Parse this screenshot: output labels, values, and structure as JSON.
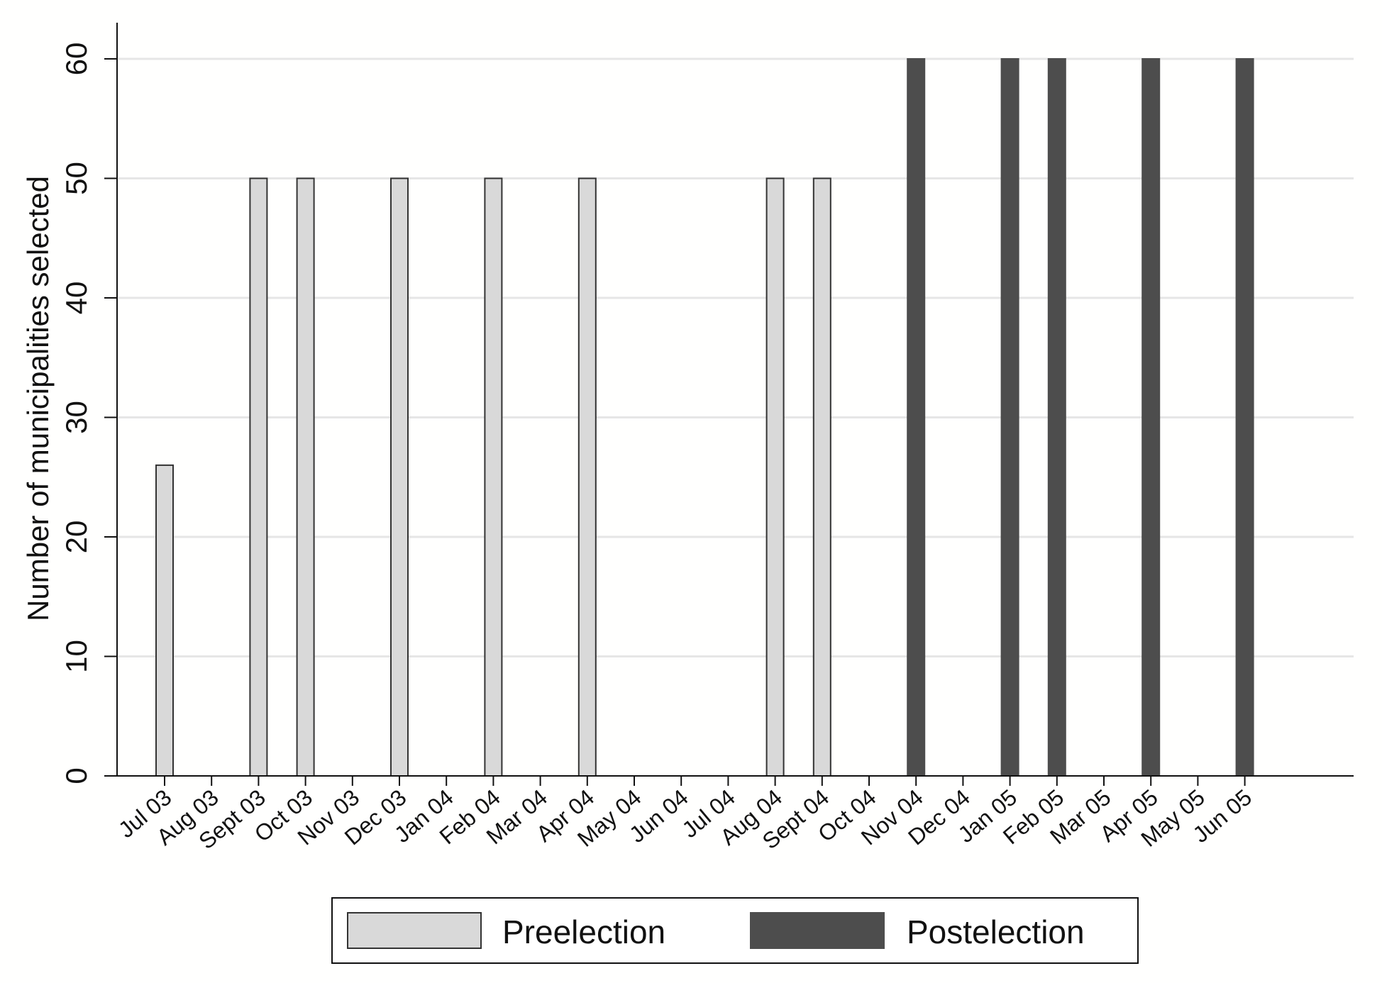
{
  "chart_data": {
    "type": "bar",
    "title": "",
    "xlabel": "",
    "ylabel": "Number of municipalities selected",
    "ylim": [
      0,
      60
    ],
    "yticks": [
      0,
      10,
      20,
      30,
      40,
      50,
      60
    ],
    "grid": true,
    "legend_position": "bottom",
    "categories": [
      "Jul 03",
      "Aug 03",
      "Sept 03",
      "Oct 03",
      "Nov 03",
      "Dec 03",
      "Jan 04",
      "Feb 04",
      "Mar 04",
      "Apr 04",
      "May 04",
      "Jun 04",
      "Jul 04",
      "Aug 04",
      "Sept 04",
      "Oct 04",
      "Nov 04",
      "Dec 04",
      "Jan 05",
      "Feb 05",
      "Mar 05",
      "Apr 05",
      "May 05",
      "Jun 05"
    ],
    "series": [
      {
        "name": "Preelection",
        "color": "#d9d9d9",
        "values": [
          26,
          0,
          50,
          50,
          0,
          50,
          0,
          50,
          0,
          50,
          0,
          0,
          0,
          50,
          50,
          0,
          0,
          0,
          0,
          0,
          0,
          0,
          0,
          0
        ]
      },
      {
        "name": "Postelection",
        "color": "#4d4d4d",
        "values": [
          0,
          0,
          0,
          0,
          0,
          0,
          0,
          0,
          0,
          0,
          0,
          0,
          0,
          0,
          0,
          0,
          60,
          0,
          60,
          60,
          0,
          60,
          0,
          60
        ]
      }
    ]
  }
}
